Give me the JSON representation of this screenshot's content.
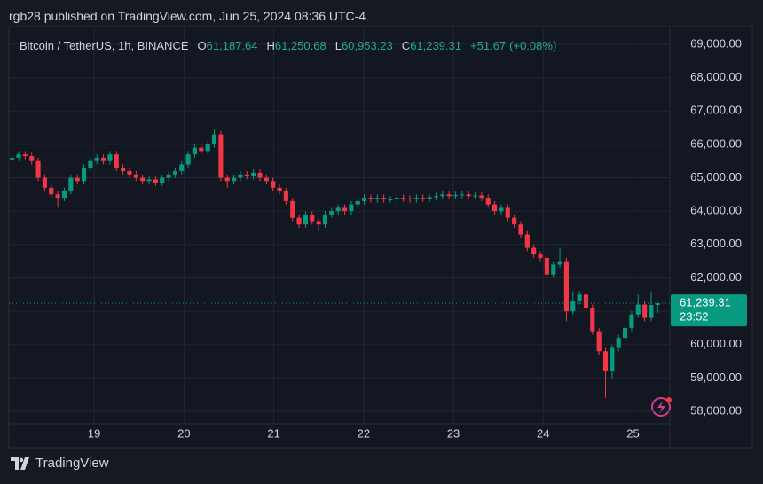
{
  "header": "rgb28 published on TradingView.com, Jun 25, 2024 08:36 UTC-4",
  "footer": "TradingView",
  "chart_data": {
    "type": "candlestick",
    "title": "Bitcoin / TetherUS, 1h, BINANCE",
    "legend": {
      "open_label": "O",
      "open": {
        "value": 61187.64,
        "label": "61,187.64"
      },
      "high_label": "H",
      "high": {
        "value": 61250.68,
        "label": "61,250.68"
      },
      "low_label": "L",
      "low": {
        "value": 60953.23,
        "label": "60,953.23"
      },
      "close_label": "C",
      "close": {
        "value": 61239.31,
        "label": "61,239.31"
      },
      "change": {
        "value": 51.67,
        "label": "+51.67"
      },
      "change_pct": {
        "value": 0.08,
        "label": "(+0.08%)"
      }
    },
    "up_color": "#089981",
    "down_color": "#f23645",
    "open": [
      65550,
      65600,
      65700,
      65650,
      65500,
      65000,
      64700,
      64500,
      64400,
      64600,
      65000,
      64900,
      65300,
      65500,
      65600,
      65500,
      65700,
      65300,
      65200,
      65100,
      65000,
      64900,
      64950,
      64850,
      65000,
      65100,
      65200,
      65400,
      65700,
      65900,
      65800,
      66000,
      66300,
      65000,
      64900,
      65000,
      65100,
      65050,
      65150,
      65000,
      64900,
      64700,
      64600,
      64300,
      63800,
      63600,
      63900,
      63700,
      63600,
      63900,
      64000,
      64100,
      64000,
      64200,
      64300,
      64400,
      64350,
      64400,
      64350,
      64350,
      64400,
      64380,
      64350,
      64400,
      64370,
      64420,
      64450,
      64500,
      64450,
      64480,
      64500,
      64450,
      64470,
      64400,
      64200,
      64000,
      64100,
      63800,
      63600,
      63300,
      62900,
      62700,
      62600,
      62100,
      62400,
      62500,
      61000,
      61300,
      61500,
      61100,
      60400,
      59800,
      59200,
      59900,
      60200,
      60500,
      60900,
      61200,
      60800,
      61187.64
    ],
    "high": [
      65700,
      65800,
      65800,
      65750,
      65600,
      65100,
      64800,
      64600,
      64700,
      65100,
      65100,
      65400,
      65600,
      65700,
      65700,
      65800,
      65800,
      65400,
      65300,
      65200,
      65100,
      65050,
      65050,
      65100,
      65200,
      65300,
      65500,
      65800,
      66000,
      66000,
      66100,
      66450,
      66400,
      65100,
      65100,
      65200,
      65200,
      65250,
      65250,
      65100,
      65000,
      64800,
      64700,
      64400,
      63900,
      64000,
      64000,
      63800,
      64000,
      64100,
      64200,
      64200,
      64300,
      64400,
      64500,
      64500,
      64500,
      64500,
      64450,
      64500,
      64500,
      64480,
      64500,
      64500,
      64520,
      64550,
      64600,
      64600,
      64580,
      64600,
      64600,
      64570,
      64570,
      64500,
      64300,
      64200,
      64200,
      63900,
      63700,
      63400,
      63000,
      62800,
      62700,
      62500,
      62900,
      62600,
      61600,
      61600,
      61600,
      61200,
      60500,
      59900,
      60000,
      60300,
      60600,
      61000,
      61500,
      61300,
      61600,
      61250.68
    ],
    "low": [
      65450,
      65500,
      65550,
      65400,
      64900,
      64600,
      64400,
      64100,
      64300,
      64500,
      64800,
      64800,
      65200,
      65400,
      65400,
      65400,
      65200,
      65100,
      65000,
      64900,
      64800,
      64800,
      64750,
      64750,
      64900,
      65000,
      65100,
      65300,
      65600,
      65700,
      65700,
      65900,
      64900,
      64700,
      64800,
      64900,
      64950,
      64950,
      64900,
      64800,
      64600,
      64500,
      64200,
      63700,
      63500,
      63500,
      63600,
      63400,
      63500,
      63800,
      63900,
      63900,
      63900,
      64100,
      64200,
      64250,
      64250,
      64250,
      64250,
      64250,
      64280,
      64250,
      64250,
      64270,
      64270,
      64320,
      64350,
      64350,
      64350,
      64380,
      64350,
      64350,
      64300,
      64100,
      63900,
      63900,
      63700,
      63500,
      63200,
      62800,
      62600,
      62500,
      62000,
      62000,
      62300,
      60700,
      60900,
      61200,
      61000,
      60300,
      59700,
      58400,
      59000,
      59800,
      60100,
      60400,
      60800,
      60700,
      60700,
      60953.23
    ],
    "close": [
      65600,
      65700,
      65650,
      65500,
      65000,
      64700,
      64500,
      64400,
      64600,
      65000,
      64900,
      65300,
      65500,
      65600,
      65500,
      65700,
      65300,
      65200,
      65100,
      65000,
      64900,
      64950,
      64850,
      65000,
      65100,
      65200,
      65400,
      65700,
      65900,
      65800,
      66000,
      66300,
      65000,
      64900,
      65000,
      65100,
      65050,
      65150,
      65000,
      64900,
      64700,
      64600,
      64300,
      63800,
      63600,
      63900,
      63700,
      63600,
      63900,
      64000,
      64100,
      64000,
      64200,
      64300,
      64400,
      64350,
      64400,
      64350,
      64350,
      64400,
      64380,
      64350,
      64400,
      64370,
      64420,
      64450,
      64500,
      64450,
      64480,
      64500,
      64450,
      64470,
      64400,
      64200,
      64000,
      64100,
      63800,
      63600,
      63300,
      62900,
      62700,
      62600,
      62100,
      62400,
      62500,
      61000,
      61300,
      61500,
      61100,
      60400,
      59800,
      59200,
      59900,
      60200,
      60500,
      60900,
      61200,
      60800,
      61187.64,
      61239.31
    ],
    "ylim": [
      57628,
      69531
    ],
    "yticks": [
      {
        "value": 58000,
        "label": "58,000.00"
      },
      {
        "value": 59000,
        "label": "59,000.00"
      },
      {
        "value": 60000,
        "label": "60,000.00"
      },
      {
        "value": 61000,
        "label": "61,000.00"
      },
      {
        "value": 62000,
        "label": "62,000.00"
      },
      {
        "value": 63000,
        "label": "63,000.00"
      },
      {
        "value": 64000,
        "label": "64,000.00"
      },
      {
        "value": 65000,
        "label": "65,000.00"
      },
      {
        "value": 66000,
        "label": "66,000.00"
      },
      {
        "value": 67000,
        "label": "67,000.00"
      },
      {
        "value": 68000,
        "label": "68,000.00"
      },
      {
        "value": 69000,
        "label": "69,000.00"
      }
    ],
    "xlim": [
      18.05,
      25.41
    ],
    "xticks": [
      19,
      20,
      21,
      22,
      23,
      24,
      25
    ],
    "grid": true,
    "last_price": {
      "value": 61239.31,
      "label": "61,239.31"
    },
    "countdown": "23:52"
  }
}
